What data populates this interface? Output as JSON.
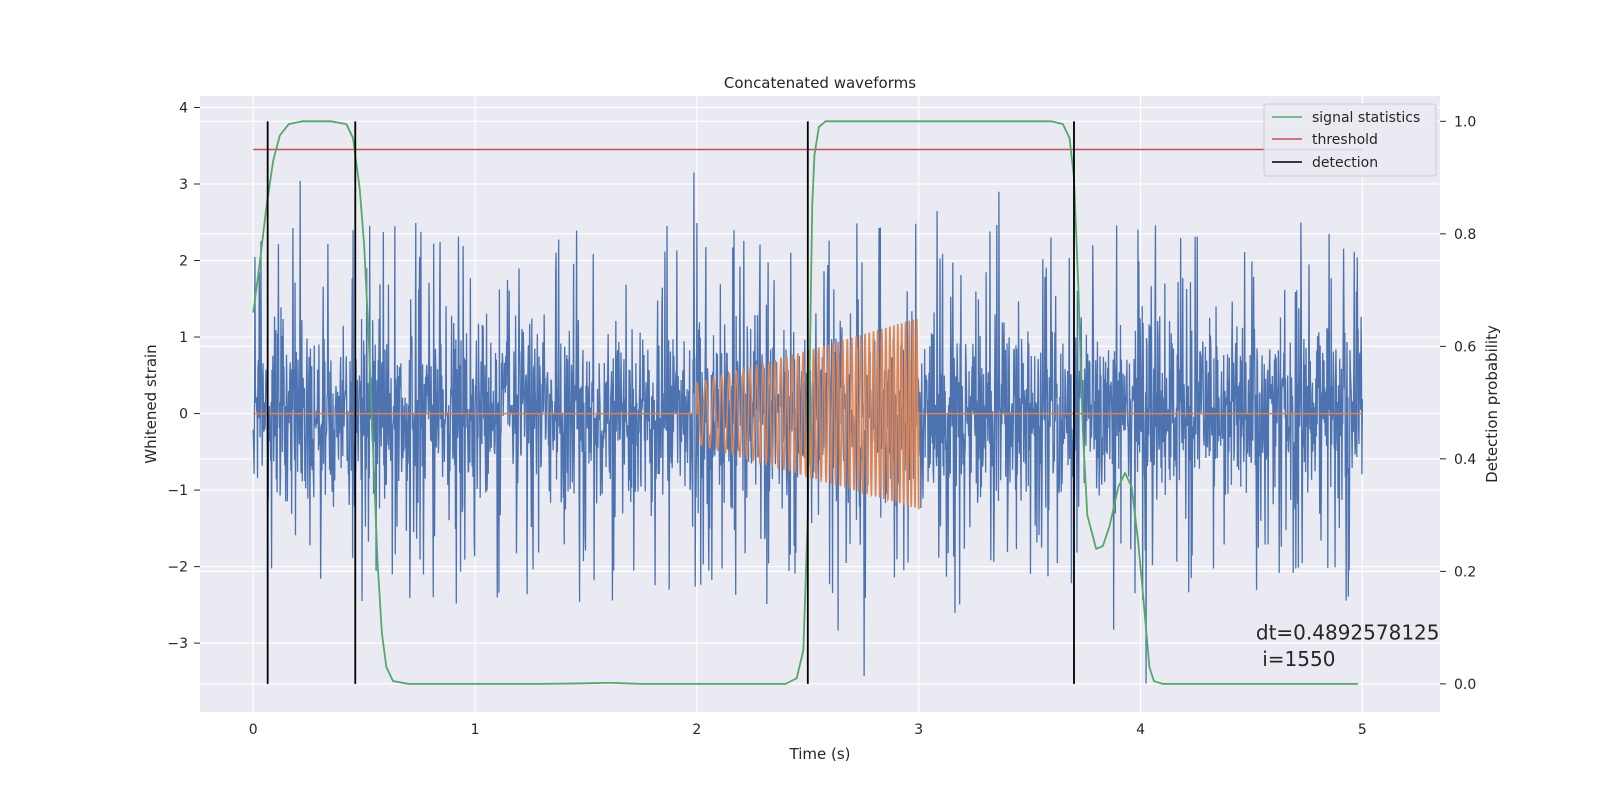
{
  "chart_data": {
    "type": "line",
    "title": "Concatenated waveforms",
    "xlabel": "Time (s)",
    "ylabel": "Whitened strain",
    "y2label": "Detection probability",
    "xlim": [
      -0.24,
      5.35
    ],
    "ylim": [
      -3.9,
      4.15
    ],
    "y2lim": [
      -0.05,
      1.045
    ],
    "xticks": [
      0,
      1,
      2,
      3,
      4,
      5
    ],
    "yticks": [
      -3,
      -2,
      -1,
      0,
      1,
      2,
      3,
      4
    ],
    "y2ticks": [
      0.0,
      0.2,
      0.4,
      0.6,
      0.8,
      1.0
    ],
    "xtick_labels": [
      "0",
      "1",
      "2",
      "3",
      "4",
      "5"
    ],
    "ytick_labels": [
      "−3",
      "−2",
      "−1",
      "0",
      "1",
      "2",
      "3",
      "4"
    ],
    "y2tick_labels": [
      "0.0",
      "0.2",
      "0.4",
      "0.6",
      "0.8",
      "1.0"
    ],
    "grid": true,
    "legend_position": "top-right",
    "series": [
      {
        "name": "",
        "role": "whitened strain noise",
        "color": "#4c72b0",
        "x_range": [
          0,
          5
        ],
        "typical_amplitude": 1.5,
        "max_amplitude": 3.7
      },
      {
        "name": "",
        "role": "injected chirp",
        "color": "#dd8452",
        "x_range": [
          0,
          5
        ],
        "chirp_start": 2.0,
        "chirp_end": 3.0,
        "amplitude_start": 0.4,
        "amplitude_end": 1.25,
        "frequency_start": 25,
        "frequency_end": 60
      },
      {
        "name": "signal statistics",
        "axis": "right",
        "color": "#55a868",
        "points": [
          [
            0.0,
            0.66
          ],
          [
            0.03,
            0.75
          ],
          [
            0.06,
            0.85
          ],
          [
            0.09,
            0.93
          ],
          [
            0.12,
            0.975
          ],
          [
            0.16,
            0.995
          ],
          [
            0.22,
            1.0
          ],
          [
            0.35,
            1.0
          ],
          [
            0.42,
            0.995
          ],
          [
            0.45,
            0.97
          ],
          [
            0.48,
            0.88
          ],
          [
            0.5,
            0.78
          ],
          [
            0.52,
            0.62
          ],
          [
            0.54,
            0.42
          ],
          [
            0.56,
            0.22
          ],
          [
            0.58,
            0.09
          ],
          [
            0.6,
            0.03
          ],
          [
            0.63,
            0.005
          ],
          [
            0.7,
            0.0
          ],
          [
            1.3,
            0.0
          ],
          [
            1.5,
            0.001
          ],
          [
            1.6,
            0.002
          ],
          [
            1.75,
            0.0
          ],
          [
            2.4,
            0.0
          ],
          [
            2.45,
            0.01
          ],
          [
            2.48,
            0.06
          ],
          [
            2.5,
            0.3
          ],
          [
            2.51,
            0.6
          ],
          [
            2.52,
            0.85
          ],
          [
            2.53,
            0.94
          ],
          [
            2.55,
            0.99
          ],
          [
            2.58,
            1.0
          ],
          [
            3.6,
            1.0
          ],
          [
            3.65,
            0.995
          ],
          [
            3.68,
            0.97
          ],
          [
            3.7,
            0.9
          ],
          [
            3.72,
            0.7
          ],
          [
            3.74,
            0.45
          ],
          [
            3.76,
            0.3
          ],
          [
            3.78,
            0.27
          ],
          [
            3.8,
            0.24
          ],
          [
            3.83,
            0.245
          ],
          [
            3.86,
            0.28
          ],
          [
            3.9,
            0.35
          ],
          [
            3.93,
            0.375
          ],
          [
            3.96,
            0.35
          ],
          [
            3.99,
            0.25
          ],
          [
            4.02,
            0.12
          ],
          [
            4.04,
            0.03
          ],
          [
            4.06,
            0.005
          ],
          [
            4.1,
            0.0
          ],
          [
            4.98,
            0.0
          ]
        ]
      },
      {
        "name": "threshold",
        "axis": "right",
        "color": "#c44e52",
        "x_range": [
          0,
          5
        ],
        "value": 0.95
      },
      {
        "name": "detection",
        "axis": "right",
        "color": "#000000",
        "x": [
          0.065,
          0.46,
          2.5,
          3.7
        ],
        "y_range": [
          0.0,
          1.0
        ]
      }
    ],
    "annotations": [
      {
        "text": "dt=0.4892578125",
        "x": 4.52,
        "y": -2.95
      },
      {
        "text": " i=1550",
        "x": 4.52,
        "y": -3.3
      }
    ]
  }
}
